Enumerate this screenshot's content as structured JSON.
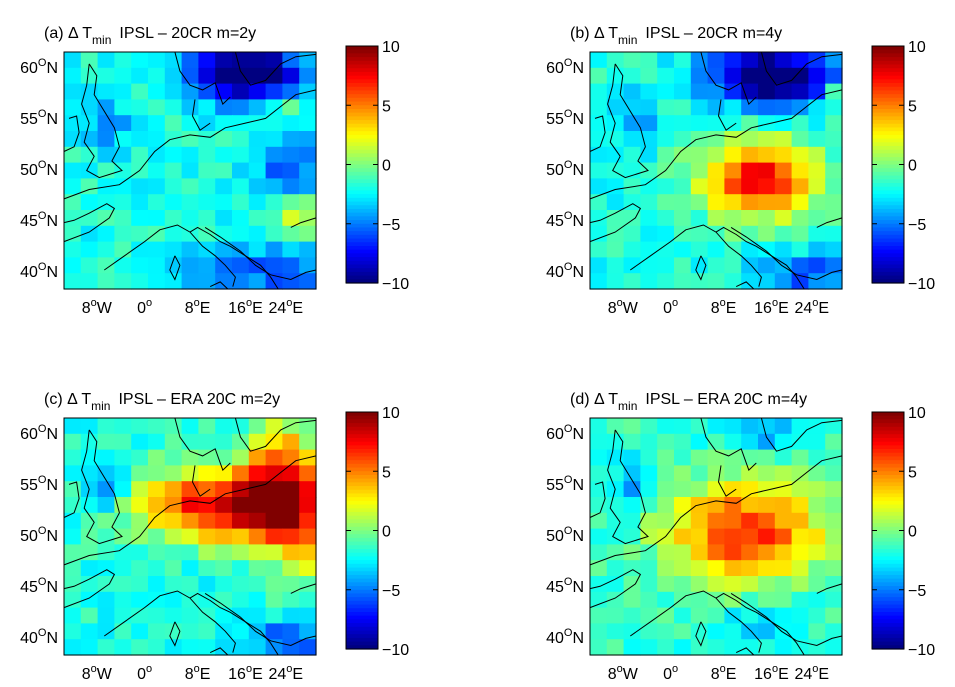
{
  "chart_data": [
    {
      "type": "heatmap",
      "title_prefix": "(a) Δ T",
      "title_sub": "min",
      "title_suffix": "IPSL – 20CR m=2y",
      "xticks": [
        {
          "base": "8",
          "sup": "o",
          "tail": "W"
        },
        {
          "base": "0",
          "sup": "o",
          "tail": ""
        },
        {
          "base": "8",
          "sup": "o",
          "tail": "E"
        },
        {
          "base": "16",
          "sup": "o",
          "tail": "E"
        },
        {
          "base": "24",
          "sup": "o",
          "tail": "E"
        }
      ],
      "yticks": [
        {
          "base": "60",
          "sup": "O",
          "tail": "N"
        },
        {
          "base": "55",
          "sup": "O",
          "tail": "N"
        },
        {
          "base": "50",
          "sup": "O",
          "tail": "N"
        },
        {
          "base": "45",
          "sup": "O",
          "tail": "N"
        },
        {
          "base": "40",
          "sup": "O",
          "tail": "N"
        }
      ],
      "colorbar": {
        "range": [
          -10,
          10
        ],
        "ticks": [
          "10",
          "5",
          "0",
          "−5",
          "−10"
        ]
      },
      "grid": {
        "cols": 15,
        "rows": 15
      },
      "blobs": [
        {
          "x": 10.5,
          "y": 1,
          "sx": 2.5,
          "sy": 1.2,
          "amp": -9.5
        },
        {
          "x": 10,
          "y": 0,
          "sx": 1.6,
          "sy": 0.8,
          "amp": -2
        },
        {
          "x": 13,
          "y": 6.5,
          "sx": 1.6,
          "sy": 1.4,
          "amp": -4
        },
        {
          "x": 2,
          "y": 4,
          "sx": 0.9,
          "sy": 1.1,
          "amp": -3
        },
        {
          "x": 11.5,
          "y": 13.5,
          "sx": 3.5,
          "sy": 1.2,
          "amp": -3.5
        },
        {
          "x": 13.5,
          "y": 10,
          "sx": 0.8,
          "sy": 0.8,
          "amp": 4
        },
        {
          "x": 13,
          "y": 3,
          "sx": 0.7,
          "sy": 0.7,
          "amp": 4
        }
      ],
      "base": -2
    },
    {
      "type": "heatmap",
      "title_prefix": "(b) Δ T",
      "title_sub": "min",
      "title_suffix": "IPSL – 20CR m=4y",
      "xticks": [
        {
          "base": "8",
          "sup": "o",
          "tail": "W"
        },
        {
          "base": "0",
          "sup": "o",
          "tail": ""
        },
        {
          "base": "8",
          "sup": "o",
          "tail": "E"
        },
        {
          "base": "16",
          "sup": "o",
          "tail": "E"
        },
        {
          "base": "24",
          "sup": "o",
          "tail": "E"
        }
      ],
      "yticks": [
        {
          "base": "60",
          "sup": "O",
          "tail": "N"
        },
        {
          "base": "55",
          "sup": "O",
          "tail": "N"
        },
        {
          "base": "50",
          "sup": "O",
          "tail": "N"
        },
        {
          "base": "45",
          "sup": "O",
          "tail": "N"
        },
        {
          "base": "40",
          "sup": "O",
          "tail": "N"
        }
      ],
      "colorbar": {
        "range": [
          -10,
          10
        ],
        "ticks": [
          "10",
          "5",
          "0",
          "−5",
          "−10"
        ]
      },
      "grid": {
        "cols": 15,
        "rows": 15
      },
      "blobs": [
        {
          "x": 10.5,
          "y": 1,
          "sx": 2.6,
          "sy": 1.3,
          "amp": -10
        },
        {
          "x": 9.5,
          "y": 7.5,
          "sx": 2.4,
          "sy": 1.8,
          "amp": 9.5
        },
        {
          "x": 2,
          "y": 4,
          "sx": 0.9,
          "sy": 1.1,
          "amp": -3
        },
        {
          "x": 12.5,
          "y": 13.5,
          "sx": 2,
          "sy": 1,
          "amp": -4
        },
        {
          "x": 14.5,
          "y": 2,
          "sx": 0.6,
          "sy": 0.6,
          "amp": 5
        }
      ],
      "base": -2
    },
    {
      "type": "heatmap",
      "title_prefix": "(c) Δ T",
      "title_sub": "min",
      "title_suffix": "IPSL – ERA 20C m=2y",
      "xticks": [
        {
          "base": "8",
          "sup": "o",
          "tail": "W"
        },
        {
          "base": "0",
          "sup": "o",
          "tail": ""
        },
        {
          "base": "8",
          "sup": "o",
          "tail": "E"
        },
        {
          "base": "16",
          "sup": "o",
          "tail": "E"
        },
        {
          "base": "24",
          "sup": "o",
          "tail": "E"
        }
      ],
      "yticks": [
        {
          "base": "60",
          "sup": "O",
          "tail": "N"
        },
        {
          "base": "55",
          "sup": "O",
          "tail": "N"
        },
        {
          "base": "50",
          "sup": "O",
          "tail": "N"
        },
        {
          "base": "45",
          "sup": "O",
          "tail": "N"
        },
        {
          "base": "40",
          "sup": "O",
          "tail": "N"
        }
      ],
      "colorbar": {
        "range": [
          -10,
          10
        ],
        "ticks": [
          "10",
          "5",
          "0",
          "−5",
          "−10"
        ]
      },
      "grid": {
        "cols": 15,
        "rows": 15
      },
      "blobs": [
        {
          "x": 9.5,
          "y": 5,
          "sx": 3.8,
          "sy": 1.6,
          "amp": 11
        },
        {
          "x": 12.5,
          "y": 3,
          "sx": 1.5,
          "sy": 2.5,
          "amp": 7
        },
        {
          "x": 13.5,
          "y": 7.5,
          "sx": 1.2,
          "sy": 1.8,
          "amp": 5
        },
        {
          "x": 2,
          "y": 4,
          "sx": 0.9,
          "sy": 1.1,
          "amp": -3
        },
        {
          "x": 13,
          "y": 13.5,
          "sx": 2,
          "sy": 0.8,
          "amp": -4
        }
      ],
      "base": -2
    },
    {
      "type": "heatmap",
      "title_prefix": "(d) Δ T",
      "title_sub": "min",
      "title_suffix": "IPSL – ERA 20C m=4y",
      "xticks": [
        {
          "base": "8",
          "sup": "o",
          "tail": "W"
        },
        {
          "base": "0",
          "sup": "o",
          "tail": ""
        },
        {
          "base": "8",
          "sup": "o",
          "tail": "E"
        },
        {
          "base": "16",
          "sup": "o",
          "tail": "E"
        },
        {
          "base": "24",
          "sup": "o",
          "tail": "E"
        }
      ],
      "yticks": [
        {
          "base": "60",
          "sup": "O",
          "tail": "N"
        },
        {
          "base": "55",
          "sup": "O",
          "tail": "N"
        },
        {
          "base": "50",
          "sup": "O",
          "tail": "N"
        },
        {
          "base": "45",
          "sup": "O",
          "tail": "N"
        },
        {
          "base": "40",
          "sup": "O",
          "tail": "N"
        }
      ],
      "colorbar": {
        "range": [
          -10,
          10
        ],
        "ticks": [
          "10",
          "5",
          "0",
          "−5",
          "−10"
        ]
      },
      "grid": {
        "cols": 15,
        "rows": 15
      },
      "blobs": [
        {
          "x": 8.8,
          "y": 6.8,
          "sx": 3.2,
          "sy": 2.2,
          "amp": 8.5
        },
        {
          "x": 2,
          "y": 4,
          "sx": 0.9,
          "sy": 1.1,
          "amp": -3
        },
        {
          "x": 9.5,
          "y": 0.5,
          "sx": 1.5,
          "sy": 0.7,
          "amp": -3
        },
        {
          "x": 10,
          "y": 12.5,
          "sx": 2,
          "sy": 1,
          "amp": -2
        }
      ],
      "base": -1.5
    }
  ]
}
